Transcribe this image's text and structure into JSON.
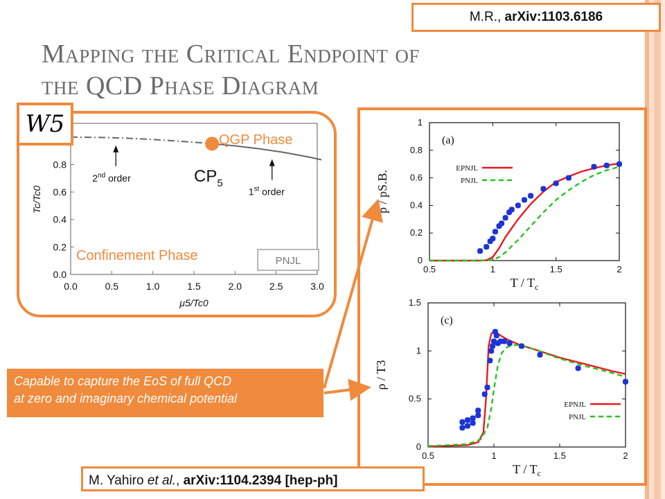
{
  "title": {
    "line1": "Mapping the Critical Endpoint of",
    "line2": "the QCD Phase Diagram"
  },
  "ref_top": {
    "prefix": "M.R., ",
    "bold": "arXiv:1103.6186"
  },
  "ref_bottom": {
    "prefix": "M. Yahiro ",
    "italic": "et al.",
    "mid": ", ",
    "bold": "arXiv:1104.2394 [hep-ph]"
  },
  "badge": "W5",
  "callout": {
    "line1": "Capable to capture the EoS of full QCD",
    "line2": "at zero and imaginary chemical potential"
  },
  "colors": {
    "accent": "#f08a3c",
    "epnjl": "#e8191f",
    "pnjl": "#22c41f",
    "lattice": "#1c34d6",
    "title": "#6b6b6b"
  },
  "chart_data": [
    {
      "type": "line",
      "xlabel": "μ5/Tc0",
      "ylabel": "Tc/Tc0",
      "xlim": [
        0,
        3.0
      ],
      "ylim": [
        0,
        1.1
      ],
      "xticks": [
        "0.0",
        "0.5",
        "1.0",
        "1.5",
        "2.0",
        "2.5",
        "3.0"
      ],
      "yticks": [
        "0.0",
        "0.2",
        "0.4",
        "0.6",
        "0.8",
        "1.0"
      ],
      "series": [
        {
          "style": "dash-dot",
          "x": [
            0,
            0.3,
            0.6,
            0.9,
            1.2,
            1.5,
            1.72
          ],
          "y": [
            1.0,
            0.998,
            0.994,
            0.986,
            0.975,
            0.963,
            0.952
          ]
        },
        {
          "style": "solid",
          "x": [
            1.72,
            2.0,
            2.3,
            2.6,
            2.9,
            3.05
          ],
          "y": [
            0.952,
            0.936,
            0.915,
            0.888,
            0.855,
            0.835
          ]
        }
      ],
      "critical_point": {
        "x": 1.72,
        "y": 0.952,
        "label": "CP",
        "sub": "5"
      },
      "annotations": {
        "qgp": "QGP Phase",
        "confinement": "Confinement Phase",
        "second_order": {
          "sup": "nd",
          "pre": "2",
          "word": "order",
          "x": 0.55,
          "y": 0.97
        },
        "first_order": {
          "sup": "st",
          "pre": "1",
          "word": "order",
          "x": 2.45,
          "y": 0.87
        },
        "model": "PNJL"
      }
    },
    {
      "type": "line",
      "panel": "(a)",
      "xlabel": "T / Tc",
      "ylabel": "p / pS.B.",
      "xlim": [
        0.5,
        2
      ],
      "ylim": [
        0,
        1
      ],
      "xticks": [
        "0.5",
        "1",
        "1.5",
        "2"
      ],
      "yticks": [
        "0",
        "0.2",
        "0.4",
        "0.6",
        "0.8",
        "1"
      ],
      "series": [
        {
          "name": "EPNJL",
          "style": "solid",
          "x": [
            0.5,
            0.9,
            0.95,
            1.0,
            1.05,
            1.1,
            1.2,
            1.3,
            1.4,
            1.5,
            1.6,
            1.7,
            1.8,
            1.9,
            2.0
          ],
          "y": [
            0,
            0,
            0.003,
            0.025,
            0.09,
            0.17,
            0.3,
            0.41,
            0.5,
            0.57,
            0.61,
            0.645,
            0.67,
            0.69,
            0.705
          ]
        },
        {
          "name": "PNJL",
          "style": "dashed",
          "x": [
            0.5,
            0.9,
            1.0,
            1.05,
            1.1,
            1.2,
            1.3,
            1.4,
            1.5,
            1.6,
            1.7,
            1.8,
            1.9,
            2.0
          ],
          "y": [
            0,
            0,
            0.005,
            0.025,
            0.06,
            0.15,
            0.25,
            0.35,
            0.44,
            0.51,
            0.57,
            0.62,
            0.655,
            0.68
          ]
        },
        {
          "name": "lattice",
          "style": "points",
          "x": [
            0.9,
            0.95,
            0.98,
            1.0,
            1.02,
            1.05,
            1.07,
            1.1,
            1.13,
            1.15,
            1.2,
            1.25,
            1.3,
            1.4,
            1.5,
            1.6,
            1.8,
            1.9,
            2.0
          ],
          "y": [
            0.07,
            0.1,
            0.14,
            0.16,
            0.21,
            0.25,
            0.27,
            0.31,
            0.35,
            0.37,
            0.4,
            0.44,
            0.47,
            0.52,
            0.56,
            0.6,
            0.68,
            0.69,
            0.7
          ]
        }
      ]
    },
    {
      "type": "line",
      "panel": "(c)",
      "xlabel": "T / Tc",
      "ylabel": "ρ / T3",
      "xlim": [
        0.5,
        2
      ],
      "ylim": [
        0,
        1.5
      ],
      "xticks": [
        "0.5",
        "1",
        "1.5",
        "2"
      ],
      "yticks": [
        "0",
        "0.5",
        "1",
        "1.5"
      ],
      "series": [
        {
          "name": "EPNJL",
          "style": "solid",
          "x": [
            0.5,
            0.8,
            0.88,
            0.92,
            0.94,
            0.96,
            0.98,
            1.0,
            1.02,
            1.05,
            1.1,
            1.2,
            1.3,
            1.5,
            1.7,
            1.9,
            2.0
          ],
          "y": [
            0.005,
            0.02,
            0.05,
            0.15,
            0.5,
            1.05,
            1.18,
            1.2,
            1.19,
            1.16,
            1.12,
            1.06,
            1.02,
            0.93,
            0.86,
            0.79,
            0.76
          ]
        },
        {
          "name": "PNJL",
          "style": "dashed",
          "x": [
            0.5,
            0.8,
            0.9,
            0.95,
            0.98,
            1.0,
            1.03,
            1.06,
            1.1,
            1.15,
            1.2,
            1.3,
            1.5,
            1.7,
            1.9,
            2.0
          ],
          "y": [
            0.01,
            0.03,
            0.08,
            0.2,
            0.4,
            0.6,
            0.85,
            0.98,
            1.04,
            1.06,
            1.06,
            1.02,
            0.92,
            0.84,
            0.77,
            0.73
          ]
        },
        {
          "name": "lattice",
          "style": "points",
          "x": [
            0.76,
            0.76,
            0.8,
            0.8,
            0.84,
            0.84,
            0.88,
            0.88,
            0.93,
            0.95,
            0.97,
            0.98,
            0.99,
            1.0,
            1.01,
            1.02,
            1.03,
            1.05,
            1.08,
            1.12,
            1.21,
            1.35,
            1.64,
            2.0
          ],
          "y": [
            0.2,
            0.26,
            0.22,
            0.28,
            0.25,
            0.3,
            0.33,
            0.38,
            0.55,
            0.62,
            0.9,
            1.0,
            1.05,
            1.1,
            1.2,
            1.16,
            1.08,
            1.1,
            1.1,
            1.08,
            1.05,
            0.96,
            0.82,
            0.68
          ]
        }
      ]
    }
  ]
}
